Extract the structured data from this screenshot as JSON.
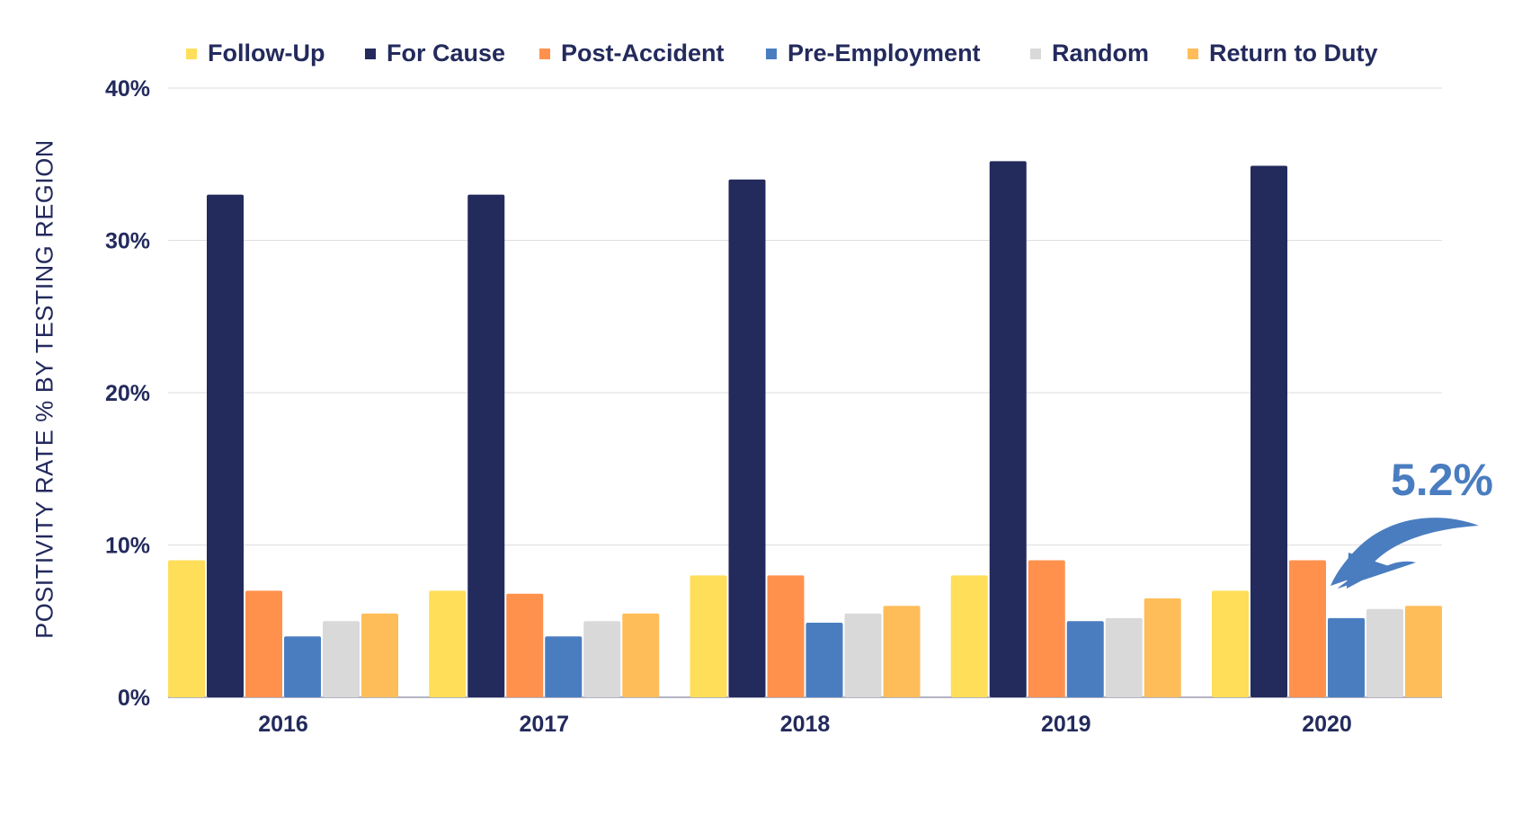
{
  "chart_data": {
    "type": "bar",
    "title": "",
    "xlabel": "",
    "ylabel": "POSITIVITY RATE % BY TESTING REGION",
    "ylim": [
      0,
      40
    ],
    "yticks": [
      "0%",
      "10%",
      "20%",
      "30%",
      "40%"
    ],
    "ytick_values": [
      0,
      10,
      20,
      30,
      40
    ],
    "grid": true,
    "legend_position": "top",
    "categories": [
      "2016",
      "2017",
      "2018",
      "2019",
      "2020"
    ],
    "series": [
      {
        "name": "Follow-Up",
        "color": "#FFDE59",
        "values": [
          9.0,
          7.0,
          8.0,
          8.0,
          7.0
        ]
      },
      {
        "name": "For Cause",
        "color": "#232A5C",
        "values": [
          33.0,
          33.0,
          34.0,
          35.2,
          34.9
        ]
      },
      {
        "name": "Post-Accident",
        "color": "#FF914D",
        "values": [
          7.0,
          6.8,
          8.0,
          9.0,
          9.0
        ]
      },
      {
        "name": "Pre-Employment",
        "color": "#4A7DC0",
        "values": [
          4.0,
          4.0,
          4.9,
          5.0,
          5.2
        ]
      },
      {
        "name": "Random",
        "color": "#D9D9D9",
        "values": [
          5.0,
          5.0,
          5.5,
          5.2,
          5.8
        ]
      },
      {
        "name": "Return to Duty",
        "color": "#FFBD59",
        "values": [
          5.5,
          5.5,
          6.0,
          6.5,
          6.0
        ]
      }
    ],
    "annotations": [
      {
        "text": "5.2%",
        "color": "#4A7DC0",
        "points_to": {
          "category": "2020",
          "series": "Pre-Employment"
        },
        "icon": "curved-arrow-icon"
      }
    ]
  }
}
